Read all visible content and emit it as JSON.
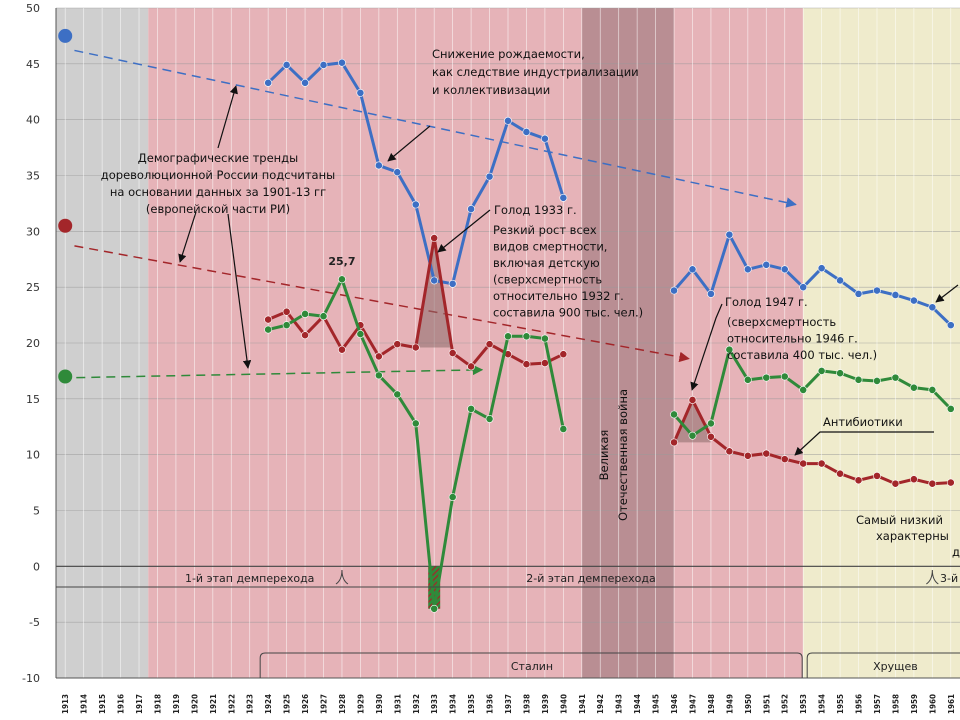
{
  "chart_data": {
    "type": "line",
    "ylim": [
      -10,
      50
    ],
    "xlim": [
      1912.5,
      1961.5
    ],
    "y_ticks": [
      "50",
      "45",
      "40",
      "35",
      "30",
      "25",
      "20",
      "15",
      "10",
      "5",
      "0",
      "-5",
      "-10"
    ],
    "x_ticks": [
      "1913",
      "1914",
      "1915",
      "1916",
      "1917",
      "1918",
      "1919",
      "1920",
      "1921",
      "1922",
      "1923",
      "1924",
      "1925",
      "1926",
      "1927",
      "1928",
      "1929",
      "1930",
      "1931",
      "1932",
      "1933",
      "1934",
      "1935",
      "1936",
      "1937",
      "1938",
      "1939",
      "1940",
      "1941",
      "1942",
      "1943",
      "1944",
      "1945",
      "1946",
      "1947",
      "1948",
      "1949",
      "1950",
      "1951",
      "1952",
      "1953",
      "1954",
      "1955",
      "1956",
      "1957",
      "1958",
      "1959",
      "1960",
      "1961"
    ],
    "grid": true,
    "colors": {
      "birth": "#3d6fc4",
      "death": "#a3262a",
      "natural": "#2f8a3a",
      "band_gray": "#cfcfcf",
      "band_pink": "#e6b3b8",
      "band_war": "#b98e93",
      "band_cream": "#efebcc"
    },
    "series": [
      {
        "key": "birth",
        "x": [
          1924,
          1925,
          1926,
          1927,
          1928,
          1929,
          1930,
          1931,
          1932,
          1933,
          1934,
          1935,
          1936,
          1937,
          1938,
          1939,
          1940,
          1946,
          1947,
          1948,
          1949,
          1950,
          1951,
          1952,
          1953,
          1954,
          1955,
          1956,
          1957,
          1958,
          1959,
          1960,
          1961
        ],
        "values": [
          43.3,
          44.9,
          43.3,
          44.9,
          45.1,
          42.4,
          35.9,
          35.3,
          32.4,
          25.6,
          25.3,
          32.0,
          34.9,
          39.9,
          38.9,
          38.3,
          33.0,
          24.7,
          26.6,
          24.4,
          29.7,
          26.6,
          27.0,
          26.6,
          25.0,
          26.7,
          25.6,
          24.4,
          24.7,
          24.3,
          23.8,
          23.2,
          21.6
        ]
      },
      {
        "key": "death",
        "x": [
          1924,
          1925,
          1926,
          1927,
          1928,
          1929,
          1930,
          1931,
          1932,
          1933,
          1934,
          1935,
          1936,
          1937,
          1938,
          1939,
          1940,
          1946,
          1947,
          1948,
          1949,
          1950,
          1951,
          1952,
          1953,
          1954,
          1955,
          1956,
          1957,
          1958,
          1959,
          1960,
          1961
        ],
        "values": [
          22.1,
          22.8,
          20.7,
          22.4,
          19.4,
          21.6,
          18.8,
          19.9,
          19.6,
          29.4,
          19.1,
          17.9,
          19.9,
          19.0,
          18.1,
          18.2,
          19.0,
          11.1,
          14.9,
          11.6,
          10.3,
          9.9,
          10.1,
          9.6,
          9.2,
          9.2,
          8.3,
          7.7,
          8.1,
          7.4,
          7.8,
          7.4,
          7.5
        ]
      },
      {
        "key": "natural",
        "x": [
          1924,
          1925,
          1926,
          1927,
          1928,
          1929,
          1930,
          1931,
          1932,
          1933,
          1934,
          1935,
          1936,
          1937,
          1938,
          1939,
          1940,
          1946,
          1947,
          1948,
          1949,
          1950,
          1951,
          1952,
          1953,
          1954,
          1955,
          1956,
          1957,
          1958,
          1959,
          1960,
          1961
        ],
        "values": [
          21.2,
          21.6,
          22.6,
          22.4,
          25.7,
          20.8,
          17.1,
          15.4,
          12.8,
          -3.8,
          6.2,
          14.1,
          13.2,
          20.6,
          20.6,
          20.4,
          12.3,
          13.6,
          11.7,
          12.8,
          19.4,
          16.7,
          16.9,
          17.0,
          15.8,
          17.5,
          17.3,
          16.7,
          16.6,
          16.9,
          16.0,
          15.8,
          14.1
        ]
      }
    ],
    "markers": {
      "birth_1913": 47.5,
      "death_1913": 30.5,
      "natural_1913": 17.0
    },
    "annotations": {
      "peak_label": "25,7",
      "birth_decline": [
        "Снижение рождаемости,",
        "как следствие индустриализации",
        "и коллективизации"
      ],
      "pre_rev": [
        "Демографические тренды",
        "дореволюционной России подсчитаны",
        "на основании данных за 1901-13 гг",
        "(европейской части РИ)"
      ],
      "famine33_title": "Голод 1933 г.",
      "famine33_body": [
        "Резкий рост всех",
        "видов смертности,",
        "включая детскую",
        "(сверхсмертность",
        "относительно 1932 г.",
        "составила 900 тыс. чел.)"
      ],
      "famine47_title": "Голод 1947 г.",
      "famine47_body": [
        "(сверхсмертность",
        "относительно 1946 г.",
        "составила 400 тыс. чел.)"
      ],
      "antibiotics": "Антибиотики",
      "war": [
        "Великая",
        "Отечественная война"
      ],
      "lowest": [
        "Самый низкий",
        "характерны",
        "д"
      ]
    },
    "stages": [
      "1-й этап демперехода",
      "2-й этап демперехода",
      "3-й"
    ],
    "rulers": [
      "Сталин",
      "Хрущев"
    ]
  }
}
